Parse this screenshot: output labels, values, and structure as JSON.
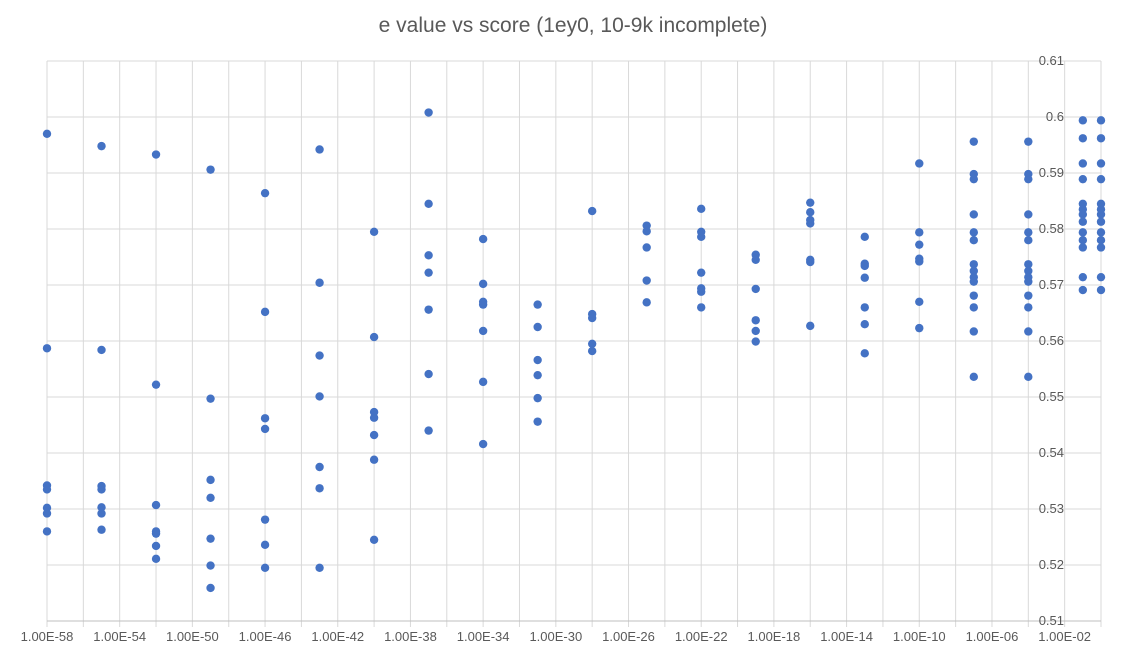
{
  "chart_data": {
    "type": "scatter",
    "title": "e value vs score (1ey0, 10-9k incomplete)",
    "xlabel": "",
    "ylabel": "",
    "x_scale": "log",
    "xlim": [
      1e-58,
      1
    ],
    "ylim": [
      0.51,
      0.61
    ],
    "grid": true,
    "x_tick_labels": [
      "1.00E-58",
      "1.00E-54",
      "1.00E-50",
      "1.00E-46",
      "1.00E-42",
      "1.00E-38",
      "1.00E-34",
      "1.00E-30",
      "1.00E-26",
      "1.00E-22",
      "1.00E-18",
      "1.00E-14",
      "1.00E-10",
      "1.00E-06",
      "1.00E-02"
    ],
    "y_tick_labels": [
      "0.51",
      "0.52",
      "0.53",
      "0.54",
      "0.55",
      "0.56",
      "0.57",
      "0.58",
      "0.59",
      "0.6",
      "0.61"
    ],
    "y_ticks": [
      0.51,
      0.52,
      0.53,
      0.54,
      0.55,
      0.56,
      0.57,
      0.58,
      0.59,
      0.6,
      0.61
    ],
    "marker_color": "#4472C4",
    "grid_color": "#D9D9D9",
    "points": [
      [
        1e-58,
        0.597
      ],
      [
        1e-58,
        0.5587
      ],
      [
        1e-58,
        0.5342
      ],
      [
        1e-58,
        0.5335
      ],
      [
        1e-58,
        0.5302
      ],
      [
        1e-58,
        0.5292
      ],
      [
        1e-58,
        0.526
      ],
      [
        1e-55,
        0.5948
      ],
      [
        1e-55,
        0.5584
      ],
      [
        1e-55,
        0.5341
      ],
      [
        1e-55,
        0.5335
      ],
      [
        1e-55,
        0.5303
      ],
      [
        1e-55,
        0.5292
      ],
      [
        1e-55,
        0.5263
      ],
      [
        1e-52,
        0.5933
      ],
      [
        1e-52,
        0.5522
      ],
      [
        1e-52,
        0.5307
      ],
      [
        1e-52,
        0.526
      ],
      [
        1e-52,
        0.5256
      ],
      [
        1e-52,
        0.5234
      ],
      [
        1e-52,
        0.5211
      ],
      [
        1e-49,
        0.5906
      ],
      [
        1e-49,
        0.5497
      ],
      [
        1e-49,
        0.5352
      ],
      [
        1e-49,
        0.532
      ],
      [
        1e-49,
        0.5247
      ],
      [
        1e-49,
        0.5199
      ],
      [
        1e-49,
        0.5159
      ],
      [
        1e-46,
        0.5864
      ],
      [
        1e-46,
        0.5652
      ],
      [
        1e-46,
        0.5462
      ],
      [
        1e-46,
        0.5443
      ],
      [
        1e-46,
        0.5281
      ],
      [
        1e-46,
        0.5236
      ],
      [
        1e-46,
        0.5195
      ],
      [
        1e-43,
        0.5942
      ],
      [
        1e-43,
        0.5704
      ],
      [
        1e-43,
        0.5574
      ],
      [
        1e-43,
        0.5501
      ],
      [
        1e-43,
        0.5375
      ],
      [
        1e-43,
        0.5337
      ],
      [
        1e-43,
        0.5195
      ],
      [
        1e-40,
        0.5795
      ],
      [
        1e-40,
        0.5607
      ],
      [
        1e-40,
        0.5473
      ],
      [
        1e-40,
        0.5463
      ],
      [
        1e-40,
        0.5432
      ],
      [
        1e-40,
        0.5388
      ],
      [
        1e-40,
        0.5245
      ],
      [
        1e-37,
        0.6008
      ],
      [
        1e-37,
        0.5845
      ],
      [
        1e-37,
        0.5753
      ],
      [
        1e-37,
        0.5722
      ],
      [
        1e-37,
        0.5656
      ],
      [
        1e-37,
        0.5541
      ],
      [
        1e-37,
        0.544
      ],
      [
        1e-34,
        0.5782
      ],
      [
        1e-34,
        0.5702
      ],
      [
        1e-34,
        0.567
      ],
      [
        1e-34,
        0.5665
      ],
      [
        1e-34,
        0.5618
      ],
      [
        1e-34,
        0.5527
      ],
      [
        1e-34,
        0.5416
      ],
      [
        1e-31,
        0.5665
      ],
      [
        1e-31,
        0.5625
      ],
      [
        1e-31,
        0.5566
      ],
      [
        1e-31,
        0.5539
      ],
      [
        1e-31,
        0.5498
      ],
      [
        1e-31,
        0.5456
      ],
      [
        1e-28,
        0.5832
      ],
      [
        1e-28,
        0.5648
      ],
      [
        1e-28,
        0.5641
      ],
      [
        1e-28,
        0.5595
      ],
      [
        1e-28,
        0.5582
      ],
      [
        1e-25,
        0.5806
      ],
      [
        1e-25,
        0.5796
      ],
      [
        1e-25,
        0.5767
      ],
      [
        1e-25,
        0.5708
      ],
      [
        1e-25,
        0.5669
      ],
      [
        1e-22,
        0.5836
      ],
      [
        1e-22,
        0.5795
      ],
      [
        1e-22,
        0.5786
      ],
      [
        1e-22,
        0.5722
      ],
      [
        1e-22,
        0.5694
      ],
      [
        1e-22,
        0.5688
      ],
      [
        1e-22,
        0.566
      ],
      [
        1e-19,
        0.5754
      ],
      [
        1e-19,
        0.5745
      ],
      [
        1e-19,
        0.5693
      ],
      [
        1e-19,
        0.5637
      ],
      [
        1e-19,
        0.5618
      ],
      [
        1e-19,
        0.5599
      ],
      [
        1e-16,
        0.5847
      ],
      [
        1e-16,
        0.583
      ],
      [
        1e-16,
        0.5816
      ],
      [
        1e-16,
        0.581
      ],
      [
        1e-16,
        0.5745
      ],
      [
        1e-16,
        0.5741
      ],
      [
        1e-16,
        0.5627
      ],
      [
        1e-13,
        0.5786
      ],
      [
        1e-13,
        0.5738
      ],
      [
        1e-13,
        0.5734
      ],
      [
        1e-13,
        0.5713
      ],
      [
        1e-13,
        0.566
      ],
      [
        1e-13,
        0.563
      ],
      [
        1e-13,
        0.5578
      ],
      [
        1e-10,
        0.5917
      ],
      [
        1e-10,
        0.5794
      ],
      [
        1e-10,
        0.5772
      ],
      [
        1e-10,
        0.5747
      ],
      [
        1e-10,
        0.5742
      ],
      [
        1e-10,
        0.567
      ],
      [
        1e-10,
        0.5623
      ],
      [
        1e-07,
        0.5956
      ],
      [
        1e-07,
        0.5898
      ],
      [
        1e-07,
        0.5889
      ],
      [
        1e-07,
        0.5826
      ],
      [
        1e-07,
        0.5794
      ],
      [
        1e-07,
        0.578
      ],
      [
        1e-07,
        0.5737
      ],
      [
        1e-07,
        0.5725
      ],
      [
        1e-07,
        0.5714
      ],
      [
        1e-07,
        0.5706
      ],
      [
        1e-07,
        0.5681
      ],
      [
        1e-07,
        0.566
      ],
      [
        1e-07,
        0.5617
      ],
      [
        1e-07,
        0.5536
      ],
      [
        0.0001,
        0.5956
      ],
      [
        0.0001,
        0.5898
      ],
      [
        0.0001,
        0.5889
      ],
      [
        0.0001,
        0.5826
      ],
      [
        0.0001,
        0.5794
      ],
      [
        0.0001,
        0.578
      ],
      [
        0.0001,
        0.5737
      ],
      [
        0.0001,
        0.5725
      ],
      [
        0.0001,
        0.5714
      ],
      [
        0.0001,
        0.5706
      ],
      [
        0.0001,
        0.5681
      ],
      [
        0.0001,
        0.566
      ],
      [
        0.0001,
        0.5617
      ],
      [
        0.0001,
        0.5536
      ],
      [
        0.1,
        0.5994
      ],
      [
        0.1,
        0.5962
      ],
      [
        0.1,
        0.5917
      ],
      [
        0.1,
        0.5889
      ],
      [
        0.1,
        0.5845
      ],
      [
        0.1,
        0.5835
      ],
      [
        0.1,
        0.5826
      ],
      [
        0.1,
        0.5813
      ],
      [
        0.1,
        0.5794
      ],
      [
        0.1,
        0.578
      ],
      [
        0.1,
        0.5767
      ],
      [
        0.1,
        0.5714
      ],
      [
        0.1,
        0.5691
      ],
      [
        1.0,
        0.5994
      ],
      [
        1.0,
        0.5962
      ],
      [
        1.0,
        0.5917
      ],
      [
        1.0,
        0.5889
      ],
      [
        1.0,
        0.5845
      ],
      [
        1.0,
        0.5835
      ],
      [
        1.0,
        0.5826
      ],
      [
        1.0,
        0.5813
      ],
      [
        1.0,
        0.5794
      ],
      [
        1.0,
        0.578
      ],
      [
        1.0,
        0.5767
      ],
      [
        1.0,
        0.5714
      ],
      [
        1.0,
        0.5691
      ]
    ]
  }
}
